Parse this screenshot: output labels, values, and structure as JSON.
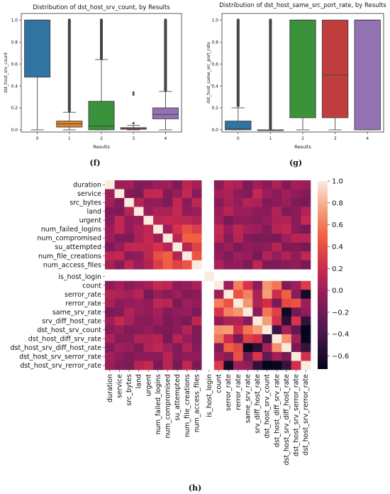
{
  "chart_data": [
    {
      "type": "box",
      "title": "Distribution of dst_host_srv_count, by Results",
      "xlabel": "Results",
      "ylabel": "dst_host_srv_count",
      "categories": [
        "0",
        "1",
        "2",
        "3",
        "4"
      ],
      "yticks": [
        "0.0",
        "0.2",
        "0.4",
        "0.6",
        "0.8",
        "1.0"
      ],
      "ylim": [
        -0.02,
        1.06
      ],
      "colors": [
        "#3274a1",
        "#e1812c",
        "#3a923a",
        "#c03d3e",
        "#9372b2"
      ],
      "boxes": [
        {
          "whisker_low": 0.0,
          "q1": 0.48,
          "median": 1.0,
          "q3": 1.0,
          "whisker_high": 1.0,
          "outliers": []
        },
        {
          "whisker_low": 0.0,
          "q1": 0.025,
          "median": 0.055,
          "q3": 0.08,
          "whisker_high": 0.16,
          "outliers": [
            0.17,
            0.2,
            0.25,
            0.3,
            0.35,
            0.4,
            0.45,
            0.5,
            0.55,
            0.6,
            0.65,
            0.7,
            0.75,
            0.8,
            0.85,
            0.9,
            0.95,
            1.0
          ]
        },
        {
          "whisker_low": 0.0,
          "q1": 0.0,
          "median": 0.035,
          "q3": 0.26,
          "whisker_high": 0.64,
          "outliers": [
            0.65,
            0.7,
            0.75,
            0.8,
            0.85,
            0.9,
            0.95,
            1.0
          ]
        },
        {
          "whisker_low": 0.0,
          "q1": 0.005,
          "median": 0.01,
          "q3": 0.02,
          "whisker_high": 0.04,
          "outliers": [
            0.06,
            0.32,
            0.34
          ]
        },
        {
          "whisker_low": 0.0,
          "q1": 0.1,
          "median": 0.14,
          "q3": 0.2,
          "whisker_high": 0.35,
          "outliers": [
            0.36,
            0.4,
            0.45,
            0.5,
            0.55,
            0.6,
            0.65,
            0.7,
            0.75,
            0.8,
            0.85,
            0.9,
            0.95,
            1.0
          ]
        }
      ]
    },
    {
      "type": "box",
      "title": "Distribution of dst_host_same_src_port_rate, by Results",
      "xlabel": "Results",
      "ylabel": "dst_host_same_src_port_rate",
      "categories": [
        "0",
        "1",
        "2",
        "3",
        "4"
      ],
      "yticks": [
        "0.0",
        "0.2",
        "0.4",
        "0.6",
        "0.8",
        "1.0"
      ],
      "ylim": [
        -0.02,
        1.06
      ],
      "colors": [
        "#3274a1",
        "#e1812c",
        "#3a923a",
        "#c03d3e",
        "#9372b2"
      ],
      "boxes": [
        {
          "whisker_low": 0.0,
          "q1": 0.0,
          "median": 0.01,
          "q3": 0.08,
          "whisker_high": 0.2,
          "outliers": [
            0.22,
            0.3,
            0.4,
            0.5,
            0.6,
            0.7,
            0.8,
            0.9,
            1.0
          ]
        },
        {
          "whisker_low": 0.0,
          "q1": 0.0,
          "median": 0.0,
          "q3": 0.0,
          "whisker_high": 0.0,
          "outliers": [
            0.01,
            0.1,
            0.2,
            0.3,
            0.4,
            0.5,
            0.6,
            0.7,
            0.8,
            0.9,
            1.0
          ]
        },
        {
          "whisker_low": 0.0,
          "q1": 0.11,
          "median": 1.0,
          "q3": 1.0,
          "whisker_high": 1.0,
          "outliers": []
        },
        {
          "whisker_low": 0.0,
          "q1": 0.11,
          "median": 0.5,
          "q3": 1.0,
          "whisker_high": 1.0,
          "outliers": []
        },
        {
          "whisker_low": 0.0,
          "q1": 0.0,
          "median": 1.0,
          "q3": 1.0,
          "whisker_high": 1.0,
          "outliers": []
        }
      ]
    },
    {
      "type": "heatmap",
      "labels": [
        "duration",
        "service",
        "src_bytes",
        "land",
        "urgent",
        "num_failed_logins",
        "num_compromised",
        "su_attempted",
        "num_file_creations",
        "num_access_files",
        "is_host_login",
        "count",
        "serror_rate",
        "rerror_rate",
        "same_srv_rate",
        "srv_diff_host_rate",
        "dst_host_srv_count",
        "dst_host_diff_srv_rate",
        "dst_host_srv_diff_host_rate",
        "dst_host_srv_serror_rate",
        "dst_host_srv_rerror_rate"
      ],
      "colorbar": {
        "ticks": [
          "1.0",
          "0.8",
          "0.6",
          "0.4",
          "0.2",
          "0.0",
          "−0.2",
          "−0.4",
          "−0.6"
        ],
        "range": [
          -0.72,
          1.0
        ]
      }
    }
  ],
  "captions": [
    "(f)",
    "(g)",
    "(h)"
  ]
}
